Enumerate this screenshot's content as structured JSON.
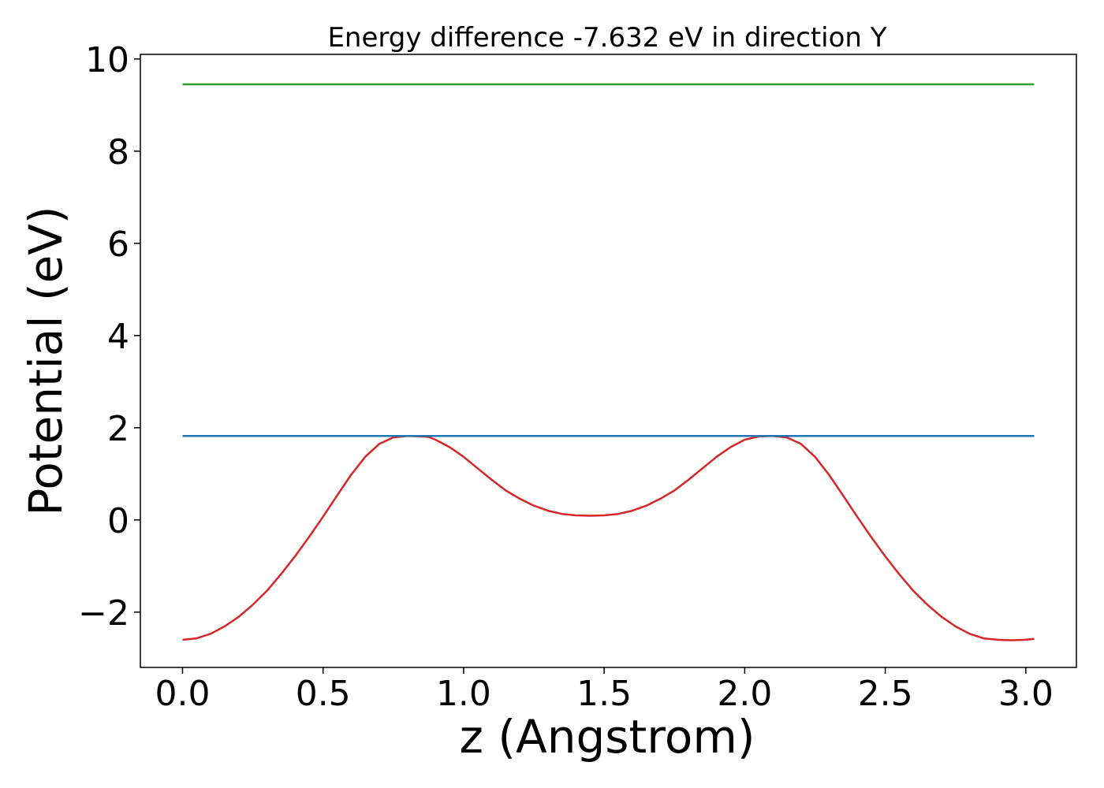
{
  "chart_data": {
    "type": "line",
    "title": "Energy difference -7.632 eV in direction Y",
    "xlabel": "z (Angstrom)",
    "ylabel": "Potential (eV)",
    "xlim": [
      -0.15,
      3.18
    ],
    "ylim": [
      -3.2,
      10.1
    ],
    "xticks": [
      0.0,
      0.5,
      1.0,
      1.5,
      2.0,
      2.5,
      3.0
    ],
    "xtick_labels": [
      "0.0",
      "0.5",
      "1.0",
      "1.5",
      "2.0",
      "2.5",
      "3.0"
    ],
    "yticks": [
      -2,
      0,
      2,
      4,
      6,
      8,
      10
    ],
    "ytick_labels": [
      "−2",
      "0",
      "2",
      "4",
      "6",
      "8",
      "10"
    ],
    "grid": false,
    "series": [
      {
        "color": "#d62728",
        "x": [
          0.0,
          0.05,
          0.1,
          0.15,
          0.2,
          0.25,
          0.3,
          0.35,
          0.4,
          0.45,
          0.5,
          0.55,
          0.6,
          0.65,
          0.7,
          0.75,
          0.8,
          0.85,
          0.875,
          0.9,
          0.95,
          1.0,
          1.05,
          1.1,
          1.15,
          1.2,
          1.25,
          1.3,
          1.35,
          1.4,
          1.45,
          1.5,
          1.55,
          1.6,
          1.65,
          1.7,
          1.75,
          1.8,
          1.85,
          1.9,
          1.95,
          2.0,
          2.05,
          2.1,
          2.15,
          2.2,
          2.25,
          2.3,
          2.35,
          2.4,
          2.45,
          2.5,
          2.55,
          2.6,
          2.65,
          2.7,
          2.75,
          2.8,
          2.85,
          2.9,
          2.95,
          3.0,
          3.03
        ],
        "y": [
          -2.6,
          -2.57,
          -2.47,
          -2.31,
          -2.1,
          -1.84,
          -1.54,
          -1.18,
          -0.79,
          -0.37,
          0.07,
          0.53,
          0.98,
          1.37,
          1.65,
          1.79,
          1.82,
          1.81,
          1.8,
          1.74,
          1.58,
          1.37,
          1.12,
          0.87,
          0.64,
          0.46,
          0.31,
          0.2,
          0.13,
          0.1,
          0.09,
          0.1,
          0.13,
          0.2,
          0.31,
          0.46,
          0.64,
          0.87,
          1.12,
          1.37,
          1.58,
          1.74,
          1.81,
          1.82,
          1.79,
          1.65,
          1.37,
          0.98,
          0.53,
          0.07,
          -0.37,
          -0.79,
          -1.18,
          -1.54,
          -1.84,
          -2.1,
          -2.31,
          -2.47,
          -2.57,
          -2.6,
          -2.61,
          -2.6,
          -2.58
        ]
      },
      {
        "color": "#1f77b4",
        "x": [
          0.0,
          3.03
        ],
        "y": [
          1.82,
          1.82
        ]
      },
      {
        "color": "#2ca02c",
        "x": [
          0.0,
          3.03
        ],
        "y": [
          9.45,
          9.45
        ]
      }
    ]
  }
}
